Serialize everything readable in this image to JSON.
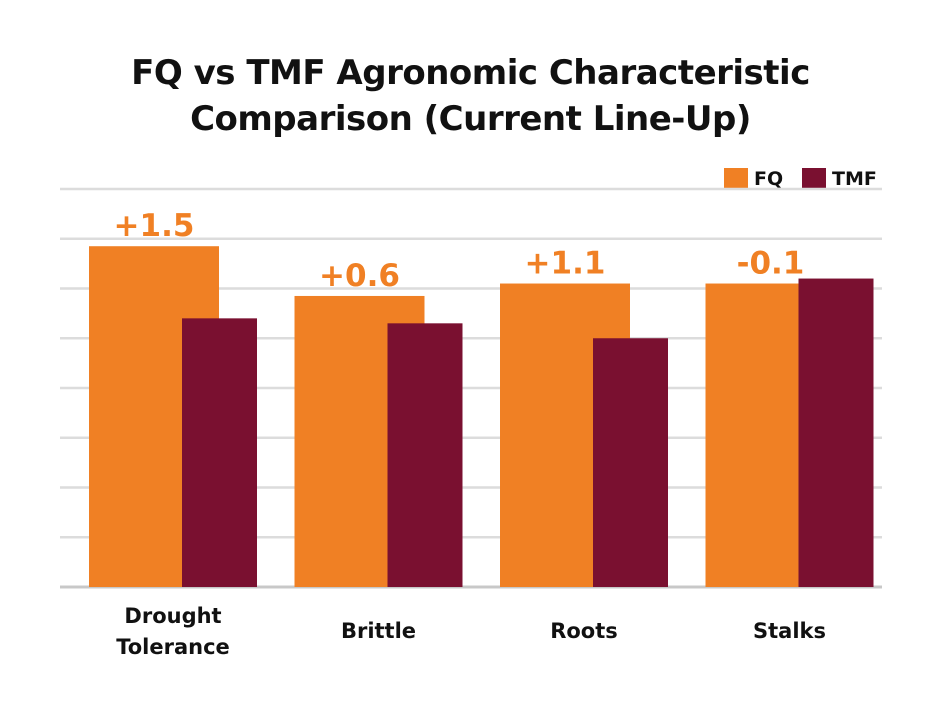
{
  "chart_data": {
    "type": "bar",
    "title_lines": [
      "FQ vs TMF Agronomic Characteristic",
      "Comparison (Current Line-Up)"
    ],
    "categories": [
      [
        "Drought",
        "Tolerance"
      ],
      [
        "Brittle"
      ],
      [
        "Roots"
      ],
      [
        "Stalks"
      ]
    ],
    "series": [
      {
        "name": "FQ",
        "color": "#F08024",
        "values": [
          6.85,
          5.85,
          6.1,
          6.1
        ]
      },
      {
        "name": "TMF",
        "color": "#7A1030",
        "values": [
          5.4,
          5.3,
          5.0,
          6.2
        ]
      }
    ],
    "annotations": [
      "+1.5",
      "+0.6",
      "+1.1",
      "-0.1"
    ],
    "annotation_color": "#F08024",
    "ylim": [
      0,
      8
    ],
    "grid": true,
    "legend_position": "top-right"
  }
}
